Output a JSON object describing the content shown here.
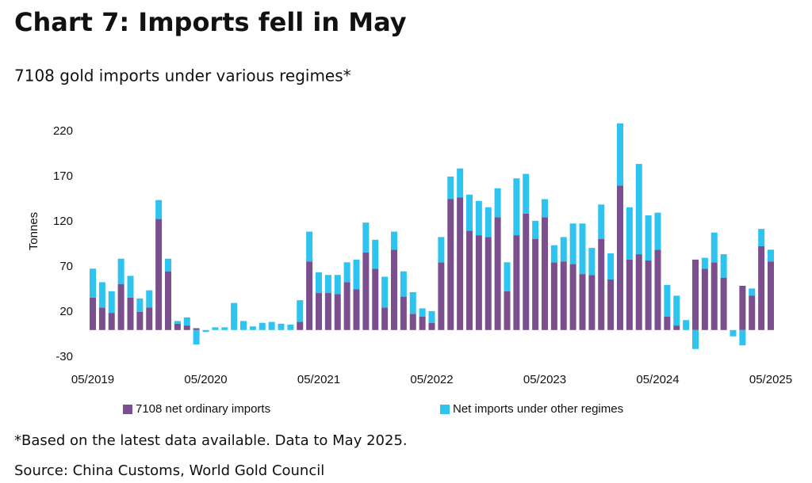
{
  "chart_data": {
    "type": "stacked_bar",
    "title": "Chart 7: Imports fell in May",
    "subtitle": "7108 gold imports under various regimes*",
    "y_label": "Tonnes",
    "categories": [
      "05/2019",
      null,
      null,
      null,
      null,
      null,
      null,
      null,
      null,
      null,
      null,
      null,
      "05/2020",
      null,
      null,
      null,
      null,
      null,
      null,
      null,
      null,
      null,
      null,
      null,
      "05/2021",
      null,
      null,
      null,
      null,
      null,
      null,
      null,
      null,
      null,
      null,
      null,
      "05/2022",
      null,
      null,
      null,
      null,
      null,
      null,
      null,
      null,
      null,
      null,
      null,
      "05/2023",
      null,
      null,
      null,
      null,
      null,
      null,
      null,
      null,
      null,
      null,
      null,
      "05/2024",
      null,
      null,
      null,
      null,
      null,
      null,
      null,
      null,
      null,
      null,
      null,
      "05/2025"
    ],
    "series": [
      {
        "name": "7108 net ordinary imports",
        "color": "#7b4f8e",
        "values": [
          36,
          25,
          19,
          51,
          36,
          20,
          25,
          123,
          65,
          7,
          5,
          2,
          0,
          0,
          0,
          0,
          0,
          0,
          0,
          0,
          0,
          0,
          9,
          76,
          41,
          41,
          40,
          53,
          45,
          86,
          68,
          25,
          89,
          37,
          18,
          15,
          8,
          75,
          145,
          147,
          110,
          105,
          103,
          125,
          43,
          105,
          129,
          101,
          125,
          75,
          76,
          73,
          62,
          61,
          101,
          56,
          160,
          78,
          84,
          77,
          89,
          15,
          5,
          0,
          78,
          68,
          75,
          58,
          0,
          49,
          38,
          93,
          76
        ]
      },
      {
        "name": "Net imports under other regimes",
        "color": "#2ec4ef",
        "values": [
          32,
          28,
          24,
          28,
          24,
          15,
          19,
          21,
          14,
          3,
          9,
          -16,
          -2,
          3,
          3,
          30,
          10,
          4,
          8,
          9,
          7,
          6,
          24,
          33,
          23,
          20,
          21,
          22,
          33,
          33,
          32,
          34,
          20,
          28,
          24,
          9,
          13,
          28,
          25,
          32,
          40,
          38,
          33,
          32,
          32,
          63,
          44,
          20,
          20,
          19,
          27,
          45,
          56,
          30,
          38,
          29,
          69,
          58,
          100,
          50,
          41,
          35,
          33,
          11,
          -21,
          12,
          33,
          26,
          -7,
          -17,
          8,
          19,
          13
        ]
      }
    ],
    "ylim": [
      -30,
      230
    ],
    "yticks": [
      -30,
      20,
      70,
      120,
      170,
      220
    ],
    "notes": [
      "*Based on the latest data available. Data to May 2025.",
      "Source: China Customs, World Gold Council"
    ]
  }
}
